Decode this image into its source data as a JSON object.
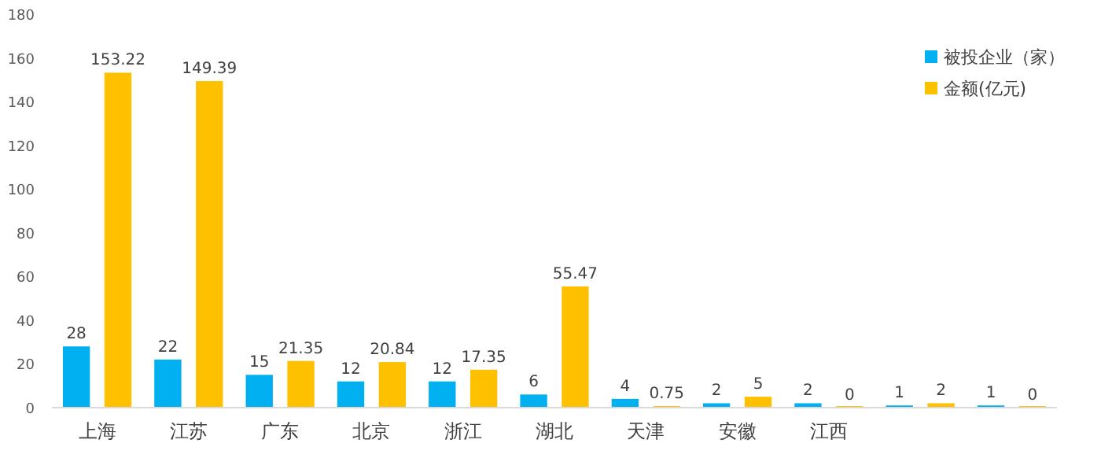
{
  "chart_data": {
    "type": "bar",
    "categories": [
      "上海",
      "江苏",
      "广东",
      "北京",
      "浙江",
      "湖北",
      "天津",
      "安徽",
      "江西",
      null,
      null
    ],
    "series": [
      {
        "name": "被投企业（家）",
        "color": "#00b0f0",
        "values": [
          28,
          22,
          15,
          12,
          12,
          6,
          4,
          2,
          2,
          1,
          1
        ]
      },
      {
        "name": "金额(亿元)",
        "color": "#ffc000",
        "values": [
          153.22,
          149.39,
          21.35,
          20.84,
          17.35,
          55.47,
          0.75,
          5,
          0,
          2,
          0
        ]
      }
    ],
    "ylim": [
      0,
      180
    ],
    "yticks": [
      0,
      20,
      40,
      60,
      80,
      100,
      120,
      140,
      160,
      180
    ],
    "data_labels": true,
    "legend": "top right",
    "grid": false
  }
}
